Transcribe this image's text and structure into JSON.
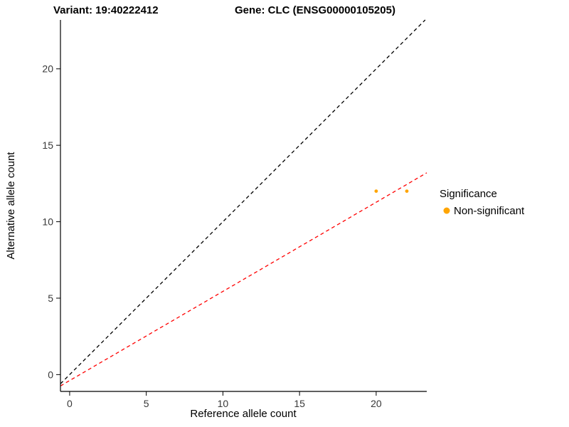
{
  "titles": {
    "variant": "Variant: 19:40222412",
    "gene": "Gene: CLC (ENSG00000105205)"
  },
  "legend": {
    "title": "Significance",
    "items": [
      {
        "label": "Non-significant",
        "color": "#FFA500"
      }
    ]
  },
  "chart_data": {
    "type": "scatter",
    "title": "Variant: 19:40222412 / Gene: CLC (ENSG00000105205)",
    "xlabel": "Reference allele count",
    "ylabel": "Alternative allele count",
    "xlim": [
      -0.6,
      23.3
    ],
    "ylim": [
      -1.1,
      23.2
    ],
    "x_ticks": [
      0,
      5,
      10,
      15,
      20
    ],
    "y_ticks": [
      0,
      5,
      10,
      15,
      20
    ],
    "grid": false,
    "legend_position": "right",
    "series": [
      {
        "name": "Non-significant",
        "color": "#FFA500",
        "points": [
          {
            "x": 20,
            "y": 12
          },
          {
            "x": 22,
            "y": 12
          }
        ]
      }
    ],
    "lines": [
      {
        "name": "identity-line",
        "color": "#000000",
        "dash": "dashed",
        "x1": -0.6,
        "y1": -0.6,
        "x2": 23.2,
        "y2": 23.2
      },
      {
        "name": "allelic-ratio-line",
        "color": "#FF0000",
        "dash": "dashed",
        "x1": -0.6,
        "y1": -0.74,
        "x2": 23.3,
        "y2": 13.2
      }
    ]
  }
}
